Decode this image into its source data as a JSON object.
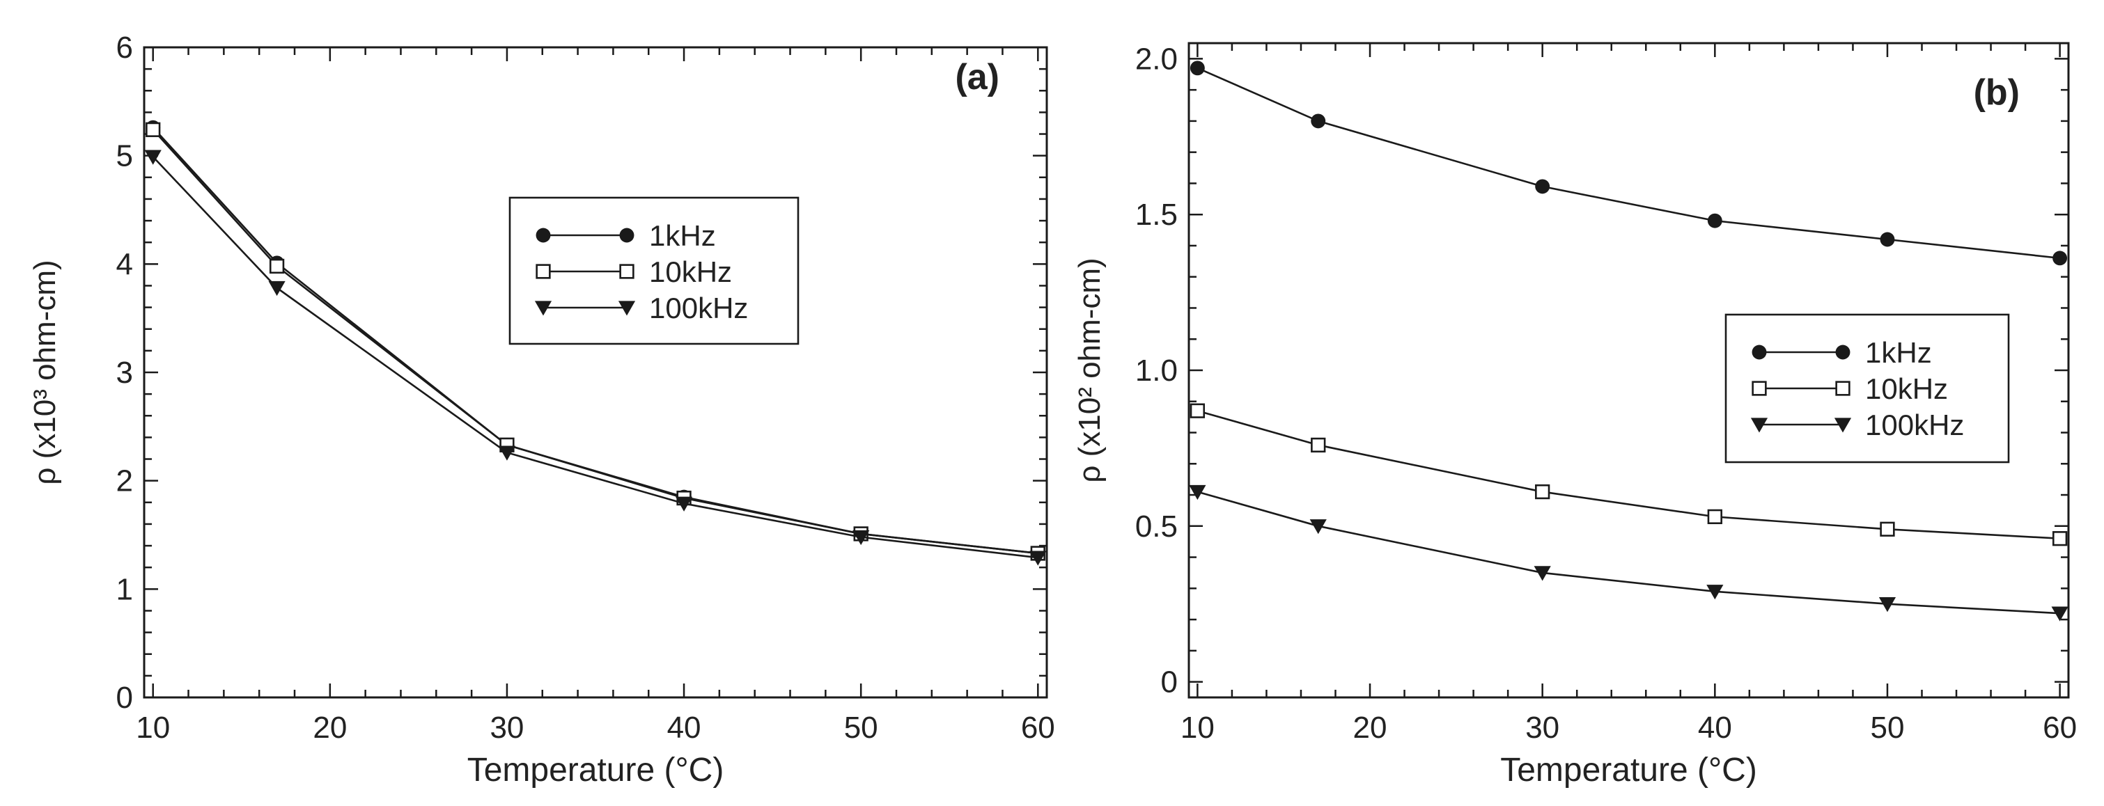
{
  "chart_data": [
    {
      "type": "line",
      "panel_label": "(a)",
      "xlabel": "Temperature (°C)",
      "ylabel": "ρ (x10³ ohm-cm)",
      "xlim": [
        9.5,
        60.5
      ],
      "ylim": [
        0,
        6
      ],
      "x_ticks": [
        10,
        20,
        30,
        40,
        50,
        60
      ],
      "y_ticks": [
        0,
        1,
        2,
        3,
        4,
        5,
        6
      ],
      "x_tick_labels": [
        "10",
        "20",
        "30",
        "40",
        "50",
        "60"
      ],
      "y_tick_labels": [
        "0",
        "1",
        "2",
        "3",
        "4",
        "5",
        "6"
      ],
      "x": [
        10,
        17,
        30,
        40,
        50,
        60
      ],
      "legend_position": "upper-center",
      "series": [
        {
          "name": "1kHz",
          "marker": "filled-circle",
          "values": [
            5.26,
            4.01,
            2.33,
            1.85,
            1.51,
            1.33
          ]
        },
        {
          "name": "10kHz",
          "marker": "open-square",
          "values": [
            5.24,
            3.98,
            2.33,
            1.84,
            1.51,
            1.33
          ]
        },
        {
          "name": "100kHz",
          "marker": "filled-triangle-down",
          "values": [
            4.99,
            3.78,
            2.26,
            1.79,
            1.48,
            1.29
          ]
        }
      ]
    },
    {
      "type": "line",
      "panel_label": "(b)",
      "xlabel": "Temperature (°C)",
      "ylabel": "ρ (x10² ohm-cm)",
      "xlim": [
        9.5,
        60.5
      ],
      "ylim": [
        -0.05,
        2.05
      ],
      "x_ticks": [
        10,
        20,
        30,
        40,
        50,
        60
      ],
      "y_ticks": [
        0,
        0.5,
        1.0,
        1.5,
        2.0
      ],
      "x_tick_labels": [
        "10",
        "20",
        "30",
        "40",
        "50",
        "60"
      ],
      "y_tick_labels": [
        "0",
        "0.5",
        "1.0",
        "1.5",
        "2.0"
      ],
      "x": [
        10,
        17,
        30,
        40,
        50,
        60
      ],
      "legend_position": "right-middle",
      "series": [
        {
          "name": "1kHz",
          "marker": "filled-circle",
          "values": [
            1.97,
            1.8,
            1.59,
            1.48,
            1.42,
            1.36
          ]
        },
        {
          "name": "10kHz",
          "marker": "open-square",
          "values": [
            0.87,
            0.76,
            0.61,
            0.53,
            0.49,
            0.46
          ]
        },
        {
          "name": "100kHz",
          "marker": "filled-triangle-down",
          "values": [
            0.61,
            0.5,
            0.35,
            0.29,
            0.25,
            0.22
          ]
        }
      ]
    }
  ]
}
